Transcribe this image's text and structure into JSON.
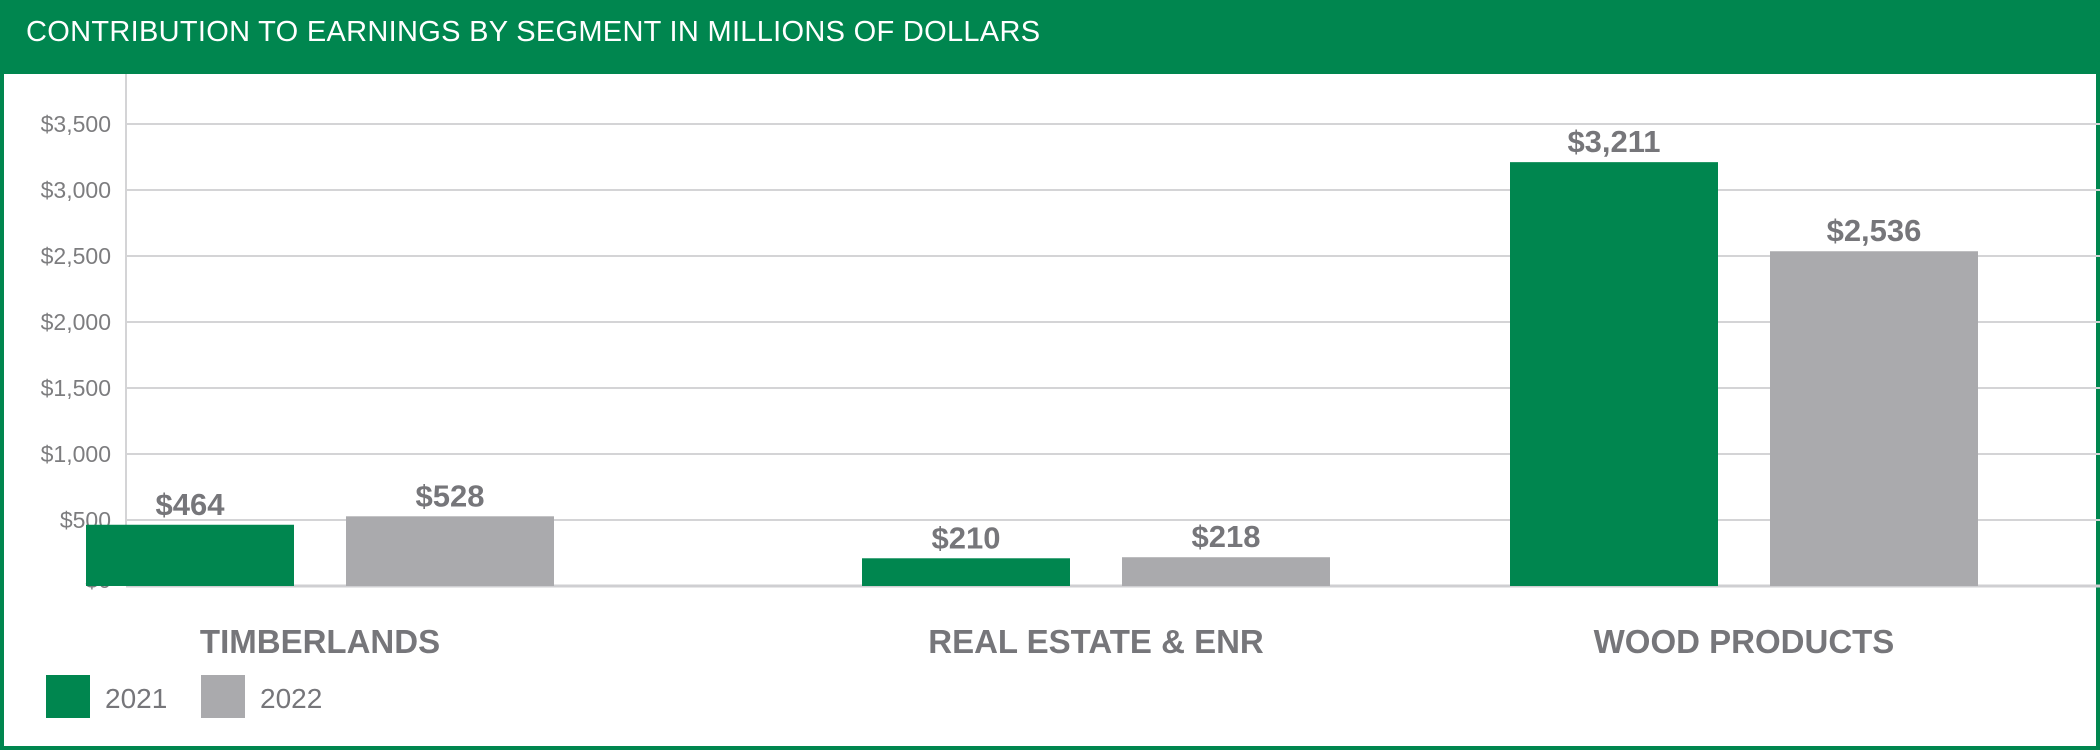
{
  "colors": {
    "brand": "#00864f",
    "series_2021": "#00864f",
    "series_2022": "#aaaaad",
    "text": "#76767a",
    "grid": "#d4d4d6"
  },
  "chart_data": {
    "type": "bar",
    "title": "CONTRIBUTION TO EARNINGS BY SEGMENT IN MILLIONS OF DOLLARS",
    "categories": [
      "TIMBERLANDS",
      "REAL ESTATE & ENR",
      "WOOD PRODUCTS"
    ],
    "series": [
      {
        "name": "2021",
        "values": [
          464,
          210,
          3211
        ],
        "labels": [
          "$464",
          "$210",
          "$3,211"
        ]
      },
      {
        "name": "2022",
        "values": [
          528,
          218,
          2536
        ],
        "labels": [
          "$528",
          "$218",
          "$2,536"
        ]
      }
    ],
    "ylim": [
      0,
      3500
    ],
    "yticks": [
      0,
      500,
      1000,
      1500,
      2000,
      2500,
      3000,
      3500
    ],
    "ytick_labels": [
      "$0",
      "$500",
      "$1,000",
      "$1,500",
      "$2,000",
      "$2,500",
      "$3,000",
      "$3,500"
    ],
    "grid": true,
    "legend": "bottom-left",
    "xlabel": "",
    "ylabel": ""
  }
}
